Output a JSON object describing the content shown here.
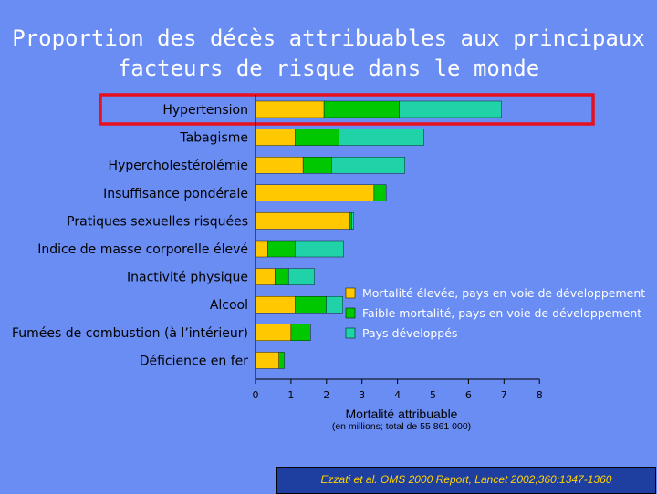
{
  "title_line1": "Proportion des décès attribuables aux principaux",
  "title_line2": "facteurs de risque dans le monde",
  "citation": "Ezzati et al. OMS 2000 Report, Lancet 2002;360:1347-1360",
  "colors": {
    "background": "#6a8df4",
    "high_mortality": "#ffc800",
    "low_mortality": "#00c800",
    "developed": "#1fd2a8",
    "highlight": "#e8101e"
  },
  "chart_data": {
    "type": "bar",
    "stacked": true,
    "orientation": "horizontal",
    "xlabel": "Mortalité attribuable",
    "xlabel_sub": "(en millions; total de 55 861 000)",
    "xlim": [
      0,
      8
    ],
    "xticks": [
      "0",
      "1",
      "2",
      "3",
      "4",
      "5",
      "6",
      "7",
      "8"
    ],
    "grid": false,
    "legend_position": "right",
    "highlighted_category": "Hypertension",
    "categories": [
      "Hypertension",
      "Tabagisme",
      "Hypercholestérolémie",
      "Insuffisance pondérale",
      "Pratiques sexuelles risquées",
      "Indice de masse corporelle élevé",
      "Inactivité physique",
      "Alcool",
      "Fumées de combustion (à l’intérieur)",
      "Déficience en fer"
    ],
    "series": [
      {
        "name": "Mortalité élevée, pays en voie de développement",
        "values": [
          1.93,
          1.12,
          1.34,
          3.34,
          2.65,
          0.34,
          0.55,
          1.12,
          1.0,
          0.66
        ]
      },
      {
        "name": "Faible mortalité, pays en voie de développement",
        "values": [
          2.12,
          1.24,
          0.8,
          0.34,
          0.06,
          0.77,
          0.38,
          0.87,
          0.55,
          0.15
        ]
      },
      {
        "name": "Pays développés",
        "values": [
          2.88,
          2.38,
          2.07,
          0.0,
          0.06,
          1.37,
          0.73,
          0.47,
          0.0,
          0.0
        ]
      }
    ]
  }
}
